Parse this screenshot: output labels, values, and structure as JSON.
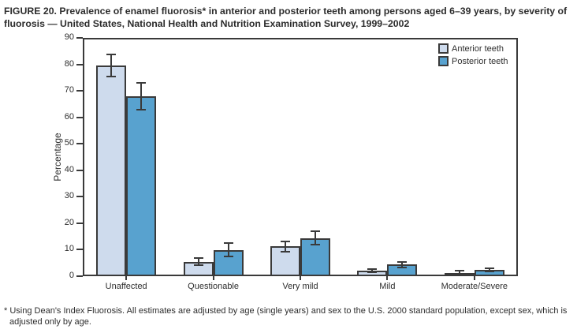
{
  "figure": {
    "title": "FIGURE 20. Prevalence of enamel fluorosis* in anterior and posterior teeth among persons aged 6–39 years, by severity of fluorosis — United States, National Health and Nutrition Examination Survey, 1999–2002",
    "footnote": "* Using Dean's Index Fluorosis. All estimates are adjusted by age (single years) and sex to the U.S. 2000 standard population, except sex, which is adjusted only by age."
  },
  "chart_data": {
    "type": "bar",
    "title": "",
    "xlabel": "",
    "ylabel": "Percentage",
    "ylim": [
      0,
      90
    ],
    "ytick_step": 10,
    "grid": false,
    "legend_position": "top-right-inside",
    "error_bars": true,
    "categories": [
      "Unaffected",
      "Questionable",
      "Very mild",
      "Mild",
      "Moderate/Severe"
    ],
    "series": [
      {
        "name": "Anterior teeth",
        "color": "#cedbed",
        "values": [
          79.6,
          5.5,
          11.2,
          2.1,
          1.2
        ],
        "ci_low": [
          75.5,
          4.2,
          9.2,
          1.5,
          0.5
        ],
        "ci_high": [
          83.6,
          6.9,
          13.2,
          2.8,
          2.0
        ]
      },
      {
        "name": "Posterior teeth",
        "color": "#58a2cf",
        "values": [
          68.0,
          9.9,
          14.4,
          4.4,
          2.4
        ],
        "ci_low": [
          63.0,
          7.4,
          11.9,
          3.4,
          1.7
        ],
        "ci_high": [
          73.0,
          12.5,
          17.0,
          5.5,
          3.1
        ]
      }
    ],
    "colors": {
      "frame": "#3a3a3a",
      "text": "#2d2d2d"
    }
  }
}
